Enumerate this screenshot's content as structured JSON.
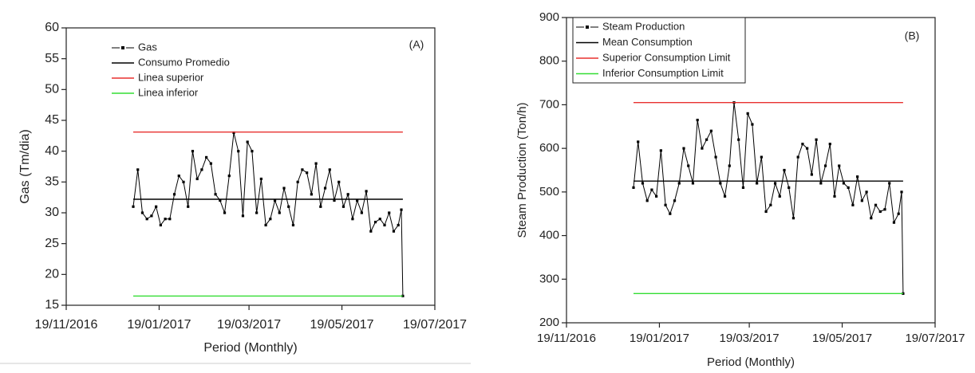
{
  "chart_data": [
    {
      "type": "line",
      "title": "(A)",
      "xlabel": "Period (Monthly)",
      "ylabel": "Gas (Tm/dia)",
      "xlim": [
        "2016-11-19",
        "2017-07-19"
      ],
      "xticks": [
        {
          "value": "2016-11-19",
          "label": "19/11/2016"
        },
        {
          "value": "2017-01-19",
          "label": "19/01/2017"
        },
        {
          "value": "2017-03-19",
          "label": "19/03/2017"
        },
        {
          "value": "2017-05-19",
          "label": "19/05/2017"
        },
        {
          "value": "2017-07-19",
          "label": "19/07/2017"
        }
      ],
      "ylim": [
        15,
        60
      ],
      "yticks": [
        15,
        20,
        25,
        30,
        35,
        40,
        45,
        50,
        55,
        60
      ],
      "legend_frame": false,
      "x": [
        "2017-01-02",
        "2017-01-05",
        "2017-01-08",
        "2017-01-11",
        "2017-01-14",
        "2017-01-17",
        "2017-01-20",
        "2017-01-23",
        "2017-01-26",
        "2017-01-29",
        "2017-02-01",
        "2017-02-04",
        "2017-02-07",
        "2017-02-10",
        "2017-02-13",
        "2017-02-16",
        "2017-02-19",
        "2017-02-22",
        "2017-02-25",
        "2017-02-28",
        "2017-03-03",
        "2017-03-06",
        "2017-03-09",
        "2017-03-12",
        "2017-03-15",
        "2017-03-18",
        "2017-03-21",
        "2017-03-24",
        "2017-03-27",
        "2017-03-30",
        "2017-04-02",
        "2017-04-05",
        "2017-04-08",
        "2017-04-11",
        "2017-04-14",
        "2017-04-17",
        "2017-04-20",
        "2017-04-23",
        "2017-04-26",
        "2017-04-29",
        "2017-05-02",
        "2017-05-05",
        "2017-05-08",
        "2017-05-11",
        "2017-05-14",
        "2017-05-17",
        "2017-05-20",
        "2017-05-23",
        "2017-05-26",
        "2017-05-29",
        "2017-06-01",
        "2017-06-04",
        "2017-06-07",
        "2017-06-10",
        "2017-06-13",
        "2017-06-16",
        "2017-06-19",
        "2017-06-22",
        "2017-06-25",
        "2017-06-27",
        "2017-06-28"
      ],
      "series": [
        {
          "name": "Gas",
          "color": "#000000",
          "marker": true,
          "values": [
            31,
            37,
            30,
            29,
            29.5,
            31,
            28,
            29,
            29,
            33,
            36,
            35,
            31,
            40,
            35.5,
            37,
            39,
            38,
            33,
            32,
            30,
            36,
            43,
            40,
            29.5,
            41.5,
            40,
            30,
            35.5,
            28,
            29,
            32,
            30,
            34,
            31,
            28,
            35,
            37,
            36.5,
            33,
            38,
            31,
            34,
            37,
            32,
            35,
            31,
            33,
            29,
            32,
            30,
            33.5,
            27,
            28.5,
            29,
            28,
            30,
            27,
            28,
            30.5,
            16.5
          ]
        },
        {
          "name": "Consumo Promedio",
          "color": "#000000",
          "marker": false,
          "x": [
            "2017-01-02",
            "2017-06-28"
          ],
          "values": [
            32.2,
            32.2
          ]
        },
        {
          "name": "Linea superior",
          "color": "#e8312f",
          "marker": false,
          "x": [
            "2017-01-02",
            "2017-06-28"
          ],
          "values": [
            43.1,
            43.1
          ]
        },
        {
          "name": "Linea inferior",
          "color": "#33dd33",
          "marker": false,
          "x": [
            "2017-01-02",
            "2017-06-28"
          ],
          "values": [
            16.5,
            16.5
          ]
        }
      ]
    },
    {
      "type": "line",
      "title": "(B)",
      "xlabel": "Period (Monthly)",
      "ylabel": "Steam Production  (Ton/h)",
      "xlim": [
        "2016-11-19",
        "2017-07-19"
      ],
      "xticks": [
        {
          "value": "2016-11-19",
          "label": "19/11/2016"
        },
        {
          "value": "2017-01-19",
          "label": "19/01/2017"
        },
        {
          "value": "2017-03-19",
          "label": "19/03/2017"
        },
        {
          "value": "2017-05-19",
          "label": "19/05/2017"
        },
        {
          "value": "2017-07-19",
          "label": "19/07/2017"
        }
      ],
      "ylim": [
        200,
        900
      ],
      "yticks": [
        200,
        300,
        400,
        500,
        600,
        700,
        800,
        900
      ],
      "legend_frame": true,
      "x": [
        "2017-01-02",
        "2017-01-05",
        "2017-01-08",
        "2017-01-11",
        "2017-01-14",
        "2017-01-17",
        "2017-01-20",
        "2017-01-23",
        "2017-01-26",
        "2017-01-29",
        "2017-02-01",
        "2017-02-04",
        "2017-02-07",
        "2017-02-10",
        "2017-02-13",
        "2017-02-16",
        "2017-02-19",
        "2017-02-22",
        "2017-02-25",
        "2017-02-28",
        "2017-03-03",
        "2017-03-06",
        "2017-03-09",
        "2017-03-12",
        "2017-03-15",
        "2017-03-18",
        "2017-03-21",
        "2017-03-24",
        "2017-03-27",
        "2017-03-30",
        "2017-04-02",
        "2017-04-05",
        "2017-04-08",
        "2017-04-11",
        "2017-04-14",
        "2017-04-17",
        "2017-04-20",
        "2017-04-23",
        "2017-04-26",
        "2017-04-29",
        "2017-05-02",
        "2017-05-05",
        "2017-05-08",
        "2017-05-11",
        "2017-05-14",
        "2017-05-17",
        "2017-05-20",
        "2017-05-23",
        "2017-05-26",
        "2017-05-29",
        "2017-06-01",
        "2017-06-04",
        "2017-06-07",
        "2017-06-10",
        "2017-06-13",
        "2017-06-16",
        "2017-06-19",
        "2017-06-22",
        "2017-06-25",
        "2017-06-27",
        "2017-06-28"
      ],
      "series": [
        {
          "name": "Steam Production",
          "color": "#000000",
          "marker": true,
          "values": [
            510,
            615,
            520,
            480,
            505,
            490,
            595,
            470,
            450,
            480,
            520,
            600,
            560,
            520,
            665,
            600,
            620,
            640,
            580,
            520,
            490,
            560,
            705,
            620,
            510,
            680,
            655,
            520,
            580,
            455,
            470,
            520,
            490,
            550,
            510,
            440,
            580,
            610,
            600,
            540,
            620,
            520,
            560,
            610,
            490,
            560,
            520,
            510,
            470,
            535,
            480,
            500,
            440,
            470,
            455,
            460,
            520,
            430,
            450,
            500,
            267
          ]
        },
        {
          "name": "Mean Consumption",
          "color": "#000000",
          "marker": false,
          "x": [
            "2017-01-02",
            "2017-06-28"
          ],
          "values": [
            525,
            525
          ]
        },
        {
          "name": "Superior Consumption Limit",
          "color": "#e8312f",
          "marker": false,
          "x": [
            "2017-01-02",
            "2017-06-28"
          ],
          "values": [
            705,
            705
          ]
        },
        {
          "name": "Inferior Consumption Limit",
          "color": "#33dd33",
          "marker": false,
          "x": [
            "2017-01-02",
            "2017-06-28"
          ],
          "values": [
            267,
            267
          ]
        }
      ]
    }
  ]
}
